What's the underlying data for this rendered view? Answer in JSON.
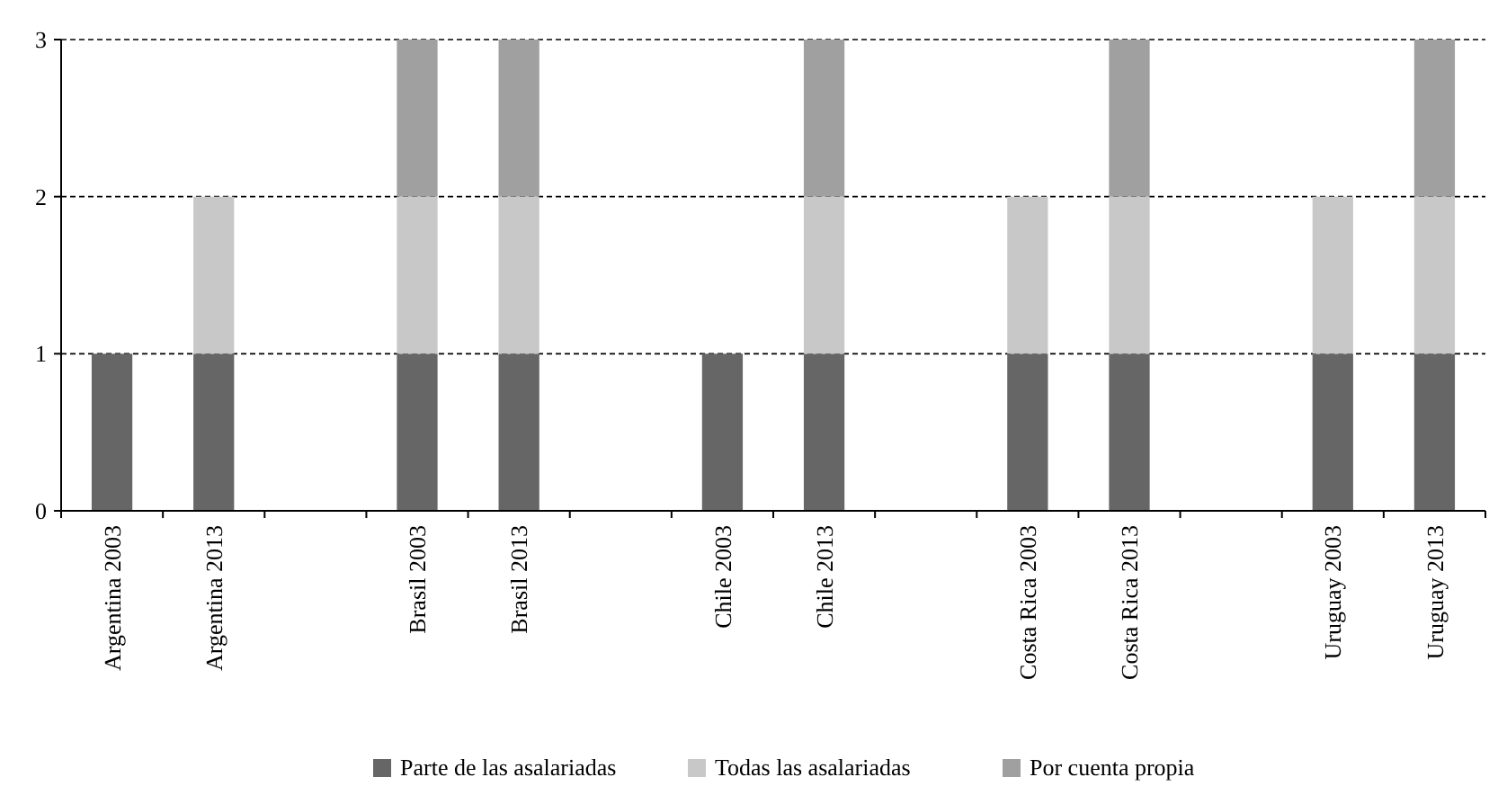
{
  "chart_data": {
    "type": "bar",
    "stacked": true,
    "categories": [
      "Argentina 2003",
      "Argentina 2013",
      null,
      "Brasil 2003",
      "Brasil 2013",
      null,
      "Chile 2003",
      "Chile 2013",
      null,
      "Costa Rica 2003",
      "Costa Rica 2013",
      null,
      "Uruguay 2003",
      "Uruguay 2013"
    ],
    "series": [
      {
        "name": "Parte de las asalariadas",
        "color": "#666666",
        "values": [
          1,
          1,
          null,
          1,
          1,
          null,
          1,
          1,
          null,
          1,
          1,
          null,
          1,
          1
        ]
      },
      {
        "name": "Todas las asalariadas",
        "color": "#c8c8c8",
        "values": [
          null,
          1,
          null,
          1,
          1,
          null,
          null,
          1,
          null,
          1,
          1,
          null,
          1,
          1
        ]
      },
      {
        "name": "Por cuenta propia",
        "color": "#a0a0a0",
        "values": [
          null,
          null,
          null,
          1,
          1,
          null,
          null,
          1,
          null,
          null,
          1,
          null,
          null,
          1
        ]
      }
    ],
    "ylim": [
      0,
      3
    ],
    "yticks": [
      0,
      1,
      2,
      3
    ],
    "grid": "y",
    "legend": "bottom"
  }
}
